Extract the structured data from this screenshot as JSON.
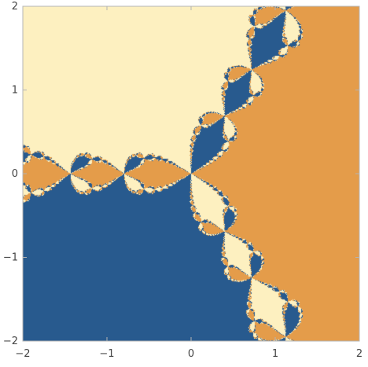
{
  "chart_data": {
    "type": "heatmap",
    "title": "",
    "xlabel": "",
    "ylabel": "",
    "xlim": [
      -2,
      2
    ],
    "ylim": [
      -2,
      2
    ],
    "x_ticks": [
      -2,
      -1,
      0,
      1,
      2
    ],
    "y_ticks": [
      -2,
      -1,
      0,
      1,
      2
    ],
    "x_tick_labels": [
      "−2",
      "−1",
      "0",
      "1",
      "2"
    ],
    "y_tick_labels": [
      "−2",
      "−1",
      "0",
      "1",
      "2"
    ],
    "grid": false,
    "legend": "none",
    "basins": [
      {
        "root": "1",
        "color": "#e49c4a"
      },
      {
        "root": "-1/2 + 0.866i",
        "color": "#fdf0c0"
      },
      {
        "root": "-1/2 - 0.866i",
        "color": "#285a8e"
      }
    ]
  }
}
